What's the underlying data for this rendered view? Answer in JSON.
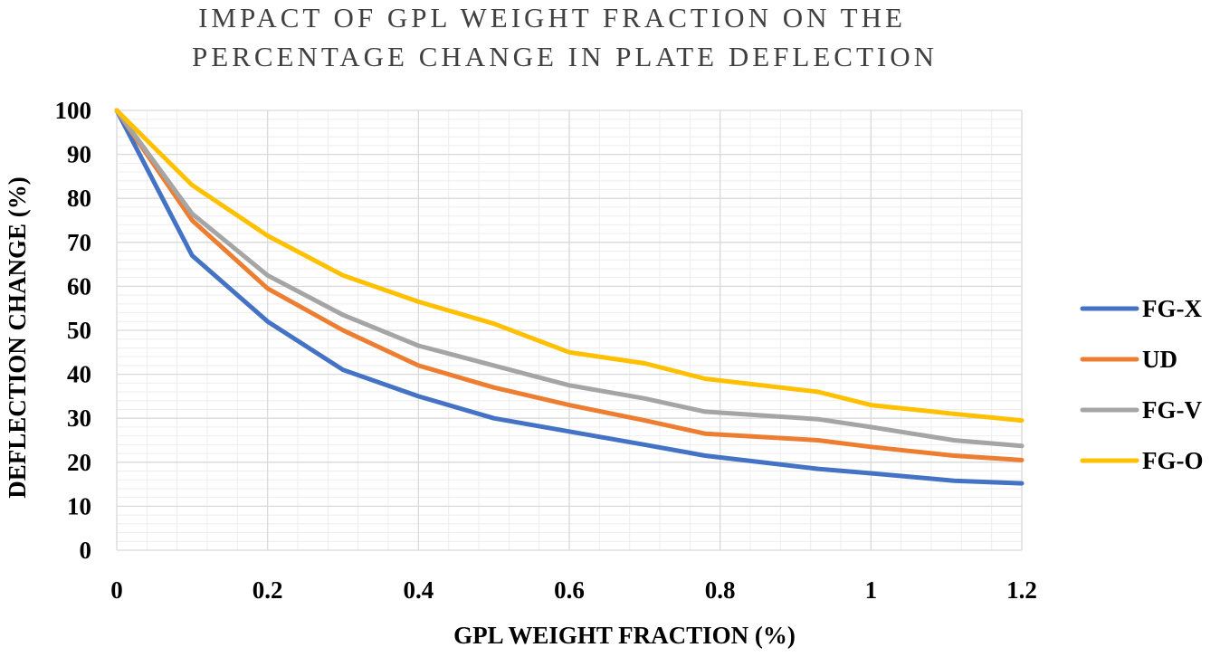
{
  "chart_data": {
    "type": "line",
    "title_lines": [
      "IMPACT OF GPL WEIGHT FRACTION ON THE",
      "PERCENTAGE CHANGE IN PLATE DEFLECTION"
    ],
    "xlabel": "GPL WEIGHT FRACTION (%)",
    "ylabel": "DEFLECTION CHANGE (%)",
    "xlim": [
      0,
      1.2
    ],
    "ylim": [
      0,
      100
    ],
    "xticks": [
      0,
      0.2,
      0.4,
      0.6,
      0.8,
      1,
      1.2
    ],
    "xtick_labels": [
      "0",
      "0.2",
      "0.4",
      "0.6",
      "0.8",
      "1",
      "1.2"
    ],
    "yticks": [
      0,
      10,
      20,
      30,
      40,
      50,
      60,
      70,
      80,
      90,
      100
    ],
    "ytick_labels": [
      "0",
      "10",
      "20",
      "30",
      "40",
      "50",
      "60",
      "70",
      "80",
      "90",
      "100"
    ],
    "grid": true,
    "legend_position": "right",
    "series": [
      {
        "name": "FG-X",
        "color": "#4472c4",
        "x": [
          0,
          0.1,
          0.2,
          0.3,
          0.4,
          0.5,
          0.6,
          0.7,
          0.78,
          0.93,
          1.0,
          1.11,
          1.2
        ],
        "values": [
          100,
          67,
          52,
          41,
          35,
          30,
          27,
          24,
          21.5,
          18.5,
          17.5,
          15.8,
          15.2
        ]
      },
      {
        "name": "UD",
        "color": "#ed7d31",
        "x": [
          0,
          0.1,
          0.2,
          0.3,
          0.4,
          0.5,
          0.6,
          0.7,
          0.78,
          0.93,
          1.0,
          1.11,
          1.2
        ],
        "values": [
          100,
          75,
          59.5,
          50,
          42,
          37,
          33,
          29.5,
          26.5,
          25,
          23.5,
          21.5,
          20.5
        ]
      },
      {
        "name": "FG-V",
        "color": "#a5a5a5",
        "x": [
          0,
          0.1,
          0.2,
          0.3,
          0.4,
          0.5,
          0.6,
          0.7,
          0.78,
          0.93,
          1.0,
          1.11,
          1.2
        ],
        "values": [
          100,
          76.5,
          62.5,
          53.5,
          46.5,
          42,
          37.5,
          34.5,
          31.5,
          29.8,
          28,
          25,
          23.7
        ]
      },
      {
        "name": "FG-O",
        "color": "#ffc000",
        "x": [
          0,
          0.1,
          0.2,
          0.3,
          0.4,
          0.5,
          0.6,
          0.7,
          0.78,
          0.93,
          1.0,
          1.11,
          1.2
        ],
        "values": [
          100,
          83,
          71.5,
          62.5,
          56.5,
          51.5,
          45,
          42.5,
          39,
          36,
          33,
          31,
          29.5
        ]
      }
    ]
  }
}
